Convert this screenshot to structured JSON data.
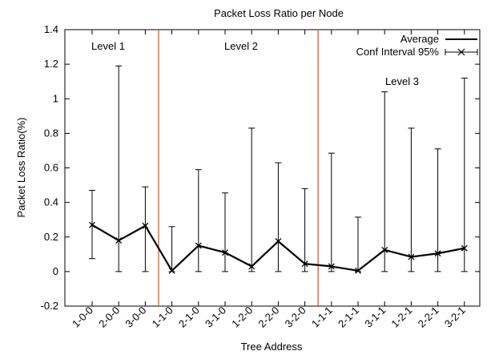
{
  "chart_data": {
    "type": "line",
    "title": "Packet Loss Ratio per Node",
    "xlabel": "Tree Address",
    "ylabel": "Packet Loss Ratio(%)",
    "ylim": [
      -0.2,
      1.4
    ],
    "yticks": [
      -0.2,
      0,
      0.2,
      0.4,
      0.6,
      0.8,
      1,
      1.2,
      1.4
    ],
    "ytick_labels": [
      "-0.2",
      "0",
      "0.2",
      "0.4",
      "0.6",
      "0.8",
      "1",
      "1.2",
      "1.4"
    ],
    "categories": [
      "1-0-0",
      "2-0-0",
      "3-0-0",
      "1-1-0",
      "2-1-0",
      "3-1-0",
      "1-2-0",
      "2-2-0",
      "3-2-0",
      "1-1-1",
      "2-1-1",
      "3-1-1",
      "1-2-1",
      "2-2-1",
      "3-2-1"
    ],
    "series": [
      {
        "name": "Average",
        "color": "#000000",
        "values": [
          0.27,
          0.18,
          0.265,
          0.005,
          0.15,
          0.11,
          0.03,
          0.175,
          0.045,
          0.03,
          0.005,
          0.125,
          0.085,
          0.105,
          0.135
        ],
        "ci_lower": [
          0.075,
          0.0,
          0.0,
          0.0,
          0.0,
          0.0,
          0.0,
          0.0,
          0.0,
          0.0,
          0.0,
          0.0,
          0.0,
          0.0,
          0.0
        ],
        "ci_upper": [
          0.47,
          1.19,
          0.49,
          0.26,
          0.59,
          0.455,
          0.83,
          0.63,
          0.48,
          0.685,
          0.315,
          1.04,
          0.83,
          0.71,
          1.12
        ]
      }
    ],
    "legend": {
      "placement": "top-right",
      "entries": [
        "Average",
        "Conf Interval 95%"
      ]
    },
    "dividers_after_category": [
      "3-0-0",
      "3-2-0"
    ],
    "divider_color": "#e0592b",
    "annotations": [
      "Level 1",
      "Level 2",
      "Level 3"
    ],
    "grid": false
  }
}
